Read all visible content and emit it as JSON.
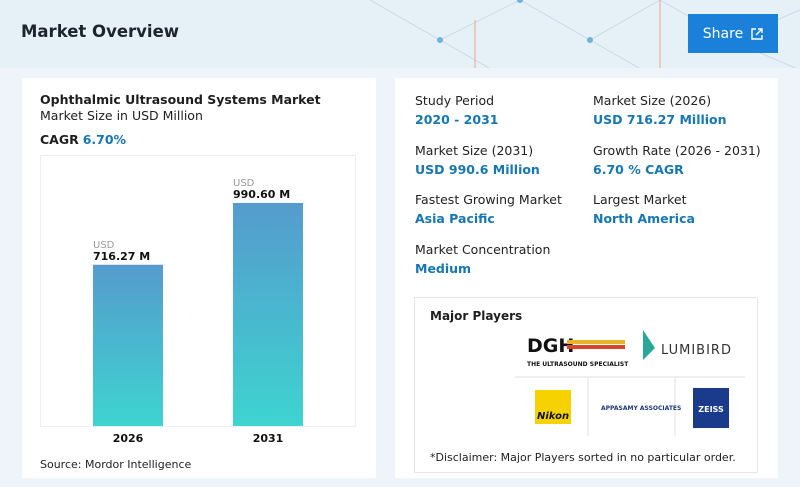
{
  "header": {
    "title": "Market Overview",
    "button": "Share"
  },
  "card": {
    "title": "Ophthalmic Ultrasound Systems Market",
    "subtitle": "Market Size in USD Million",
    "cagr_label": "CAGR",
    "cagr_value": "6.70%",
    "source": "Source: Mordor Intelligence"
  },
  "chart_data": {
    "type": "bar",
    "categories": [
      "2026",
      "2031"
    ],
    "values": [
      716.27,
      990.6
    ],
    "value_labels": [
      "716.27 M",
      "990.60 M"
    ],
    "unit": "USD",
    "gradient": [
      "#559bcd",
      "#3ed4d0"
    ]
  },
  "stats": [
    {
      "label": "Study Period",
      "value": "2020 - 2031"
    },
    {
      "label": "Market Size (2026)",
      "value": "USD 716.27 Million"
    },
    {
      "label": "Market Size (2031)",
      "value": "USD 990.6 Million"
    },
    {
      "label": "Growth Rate (2026 - 2031)",
      "value": "6.70 % CAGR"
    },
    {
      "label": "Fastest Growing Market",
      "value": "Asia Pacific"
    },
    {
      "label": "Largest Market",
      "value": "North America"
    },
    {
      "label": "Market Concentration",
      "value": "Medium"
    }
  ],
  "major_players": {
    "title": "Major Players",
    "logos": [
      "DGH",
      "THE ULTRASOUND SPECIALIST",
      "LUMIBIRD",
      "Nikon",
      "APPASAMY ASSOCIATES",
      "ZEISS"
    ],
    "disclaimer": "*Disclaimer: Major Players sorted in no particular order."
  }
}
